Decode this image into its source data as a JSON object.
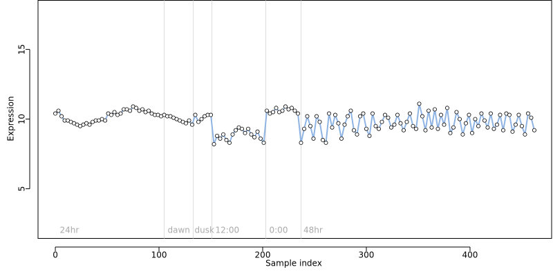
{
  "chart_data": {
    "type": "scatter",
    "x_label": "Sample index",
    "y_label": "Expression",
    "xlim": [
      -16.7,
      478.7
    ],
    "ylim": [
      1.44,
      18.52
    ],
    "xticks": [
      0,
      100,
      200,
      300,
      400
    ],
    "yticks": [
      5,
      10,
      15
    ],
    "vlines": [
      105,
      133,
      151,
      203,
      237
    ],
    "annotations": [
      {
        "text": "24hr",
        "x": 3
      },
      {
        "text": "dawn",
        "x": 107
      },
      {
        "text": "dusk",
        "x": 133
      },
      {
        "text": "12:00",
        "x": 153
      },
      {
        "text": "0:00",
        "x": 205
      },
      {
        "text": "48hr",
        "x": 238
      }
    ],
    "series": [
      {
        "line_color": "#8fb4e3",
        "color": "#ffffff",
        "x": [
          0,
          3,
          6,
          9,
          12,
          15,
          18,
          21,
          24,
          27,
          30,
          33,
          36,
          39,
          42,
          45,
          48,
          51,
          54,
          57,
          60,
          63,
          66,
          69,
          72,
          75,
          78,
          81,
          84,
          87,
          90,
          93,
          96,
          99,
          102,
          105,
          108,
          111,
          114,
          117,
          120,
          123,
          126,
          129,
          132,
          135,
          138,
          141,
          144,
          147,
          150,
          153,
          156,
          159,
          162,
          165,
          168,
          171,
          174,
          177,
          180,
          183,
          186,
          189,
          192,
          195,
          198,
          201,
          204,
          207,
          210,
          213,
          216,
          219,
          222,
          225,
          228,
          231,
          234,
          237,
          240,
          243,
          246,
          249,
          252,
          255,
          258,
          261,
          264,
          267,
          270,
          273,
          276,
          279,
          282,
          285,
          288,
          291,
          294,
          297,
          300,
          303,
          306,
          309,
          312,
          315,
          318,
          321,
          324,
          327,
          330,
          333,
          336,
          339,
          342,
          345,
          348,
          351,
          354,
          357,
          360,
          363,
          366,
          369,
          372,
          375,
          378,
          381,
          384,
          387,
          390,
          393,
          396,
          399,
          402,
          405,
          408,
          411,
          414,
          417,
          420,
          423,
          426,
          429,
          432,
          435,
          438,
          441,
          444,
          447,
          450,
          453,
          456,
          459,
          462
        ],
        "values": [
          10.4,
          10.6,
          10.2,
          9.9,
          9.9,
          9.8,
          9.7,
          9.6,
          9.5,
          9.6,
          9.7,
          9.6,
          9.8,
          9.9,
          9.9,
          10.0,
          9.9,
          10.4,
          10.3,
          10.5,
          10.3,
          10.4,
          10.7,
          10.7,
          10.6,
          10.9,
          10.8,
          10.6,
          10.7,
          10.5,
          10.6,
          10.4,
          10.3,
          10.3,
          10.2,
          10.3,
          10.2,
          10.2,
          10.1,
          10.0,
          9.9,
          9.8,
          9.7,
          9.9,
          9.6,
          10.3,
          9.8,
          10.0,
          10.2,
          10.3,
          10.3,
          8.2,
          8.8,
          8.6,
          8.9,
          8.5,
          8.3,
          8.9,
          9.2,
          9.4,
          9.3,
          9.0,
          9.3,
          8.9,
          8.7,
          9.1,
          8.6,
          8.3,
          10.6,
          10.4,
          10.5,
          10.8,
          10.5,
          10.6,
          10.9,
          10.7,
          10.8,
          10.6,
          10.4,
          8.3,
          9.3,
          10.2,
          9.5,
          8.6,
          10.2,
          9.8,
          8.5,
          8.3,
          10.4,
          9.4,
          10.3,
          9.7,
          8.6,
          9.6,
          10.2,
          10.6,
          9.2,
          8.9,
          10.2,
          10.4,
          9.3,
          8.8,
          10.4,
          9.5,
          9.3,
          9.8,
          10.3,
          10.1,
          9.4,
          9.6,
          10.3,
          9.7,
          9.2,
          9.8,
          10.4,
          9.5,
          9.3,
          11.1,
          10.2,
          9.2,
          10.6,
          9.4,
          10.7,
          9.3,
          10.3,
          9.6,
          10.8,
          9.0,
          9.4,
          10.5,
          10.0,
          8.9,
          9.7,
          10.3,
          9.0,
          10.0,
          9.5,
          10.4,
          9.9,
          9.4,
          10.4,
          9.3,
          9.6,
          10.3,
          9.2,
          10.4,
          10.3,
          9.1,
          9.6,
          10.3,
          9.5,
          8.9,
          10.4,
          10.1,
          9.2
        ]
      }
    ]
  }
}
